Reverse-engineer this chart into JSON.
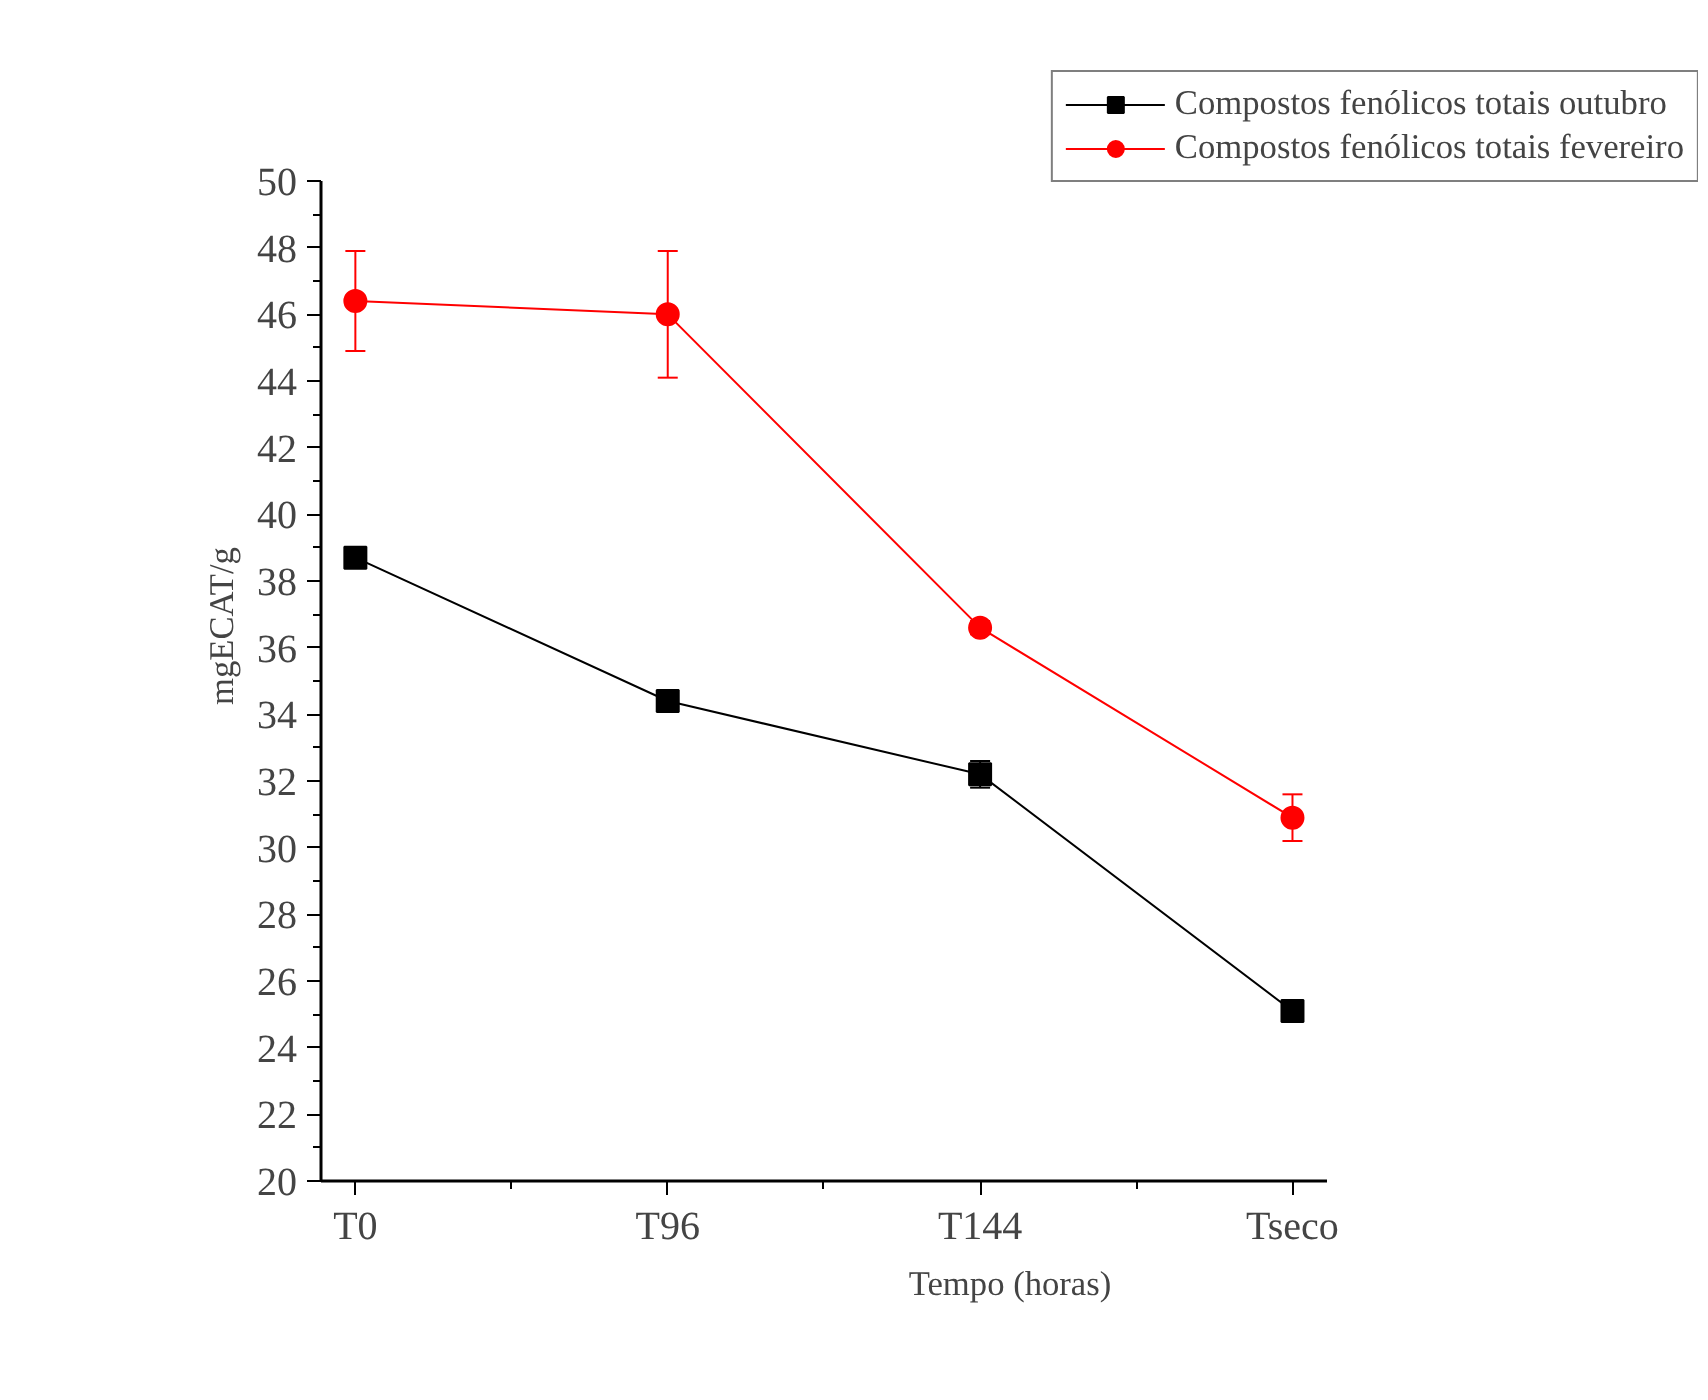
{
  "chart_data": {
    "type": "line",
    "xlabel": "Tempo (horas)",
    "ylabel": "mgECAT/g",
    "categories": [
      "T0",
      "T96",
      "T144",
      "Tseco"
    ],
    "ylim": [
      20,
      50
    ],
    "yticks": [
      20,
      22,
      24,
      26,
      28,
      30,
      32,
      34,
      36,
      38,
      40,
      42,
      44,
      46,
      48,
      50
    ],
    "grid": false,
    "legend": "top right",
    "series": [
      {
        "name": "Compostos fenólicos totais outubro",
        "color": "#000000",
        "marker": "square",
        "values": [
          38.7,
          34.4,
          32.2,
          25.1
        ],
        "errors": [
          null,
          null,
          0.4,
          null
        ]
      },
      {
        "name": "Compostos fenólicos totais fevereiro",
        "color": "#ff0000",
        "marker": "circle",
        "values": [
          46.4,
          46.0,
          36.6,
          30.9
        ],
        "errors": [
          1.5,
          1.9,
          0.2,
          0.7
        ]
      }
    ]
  }
}
